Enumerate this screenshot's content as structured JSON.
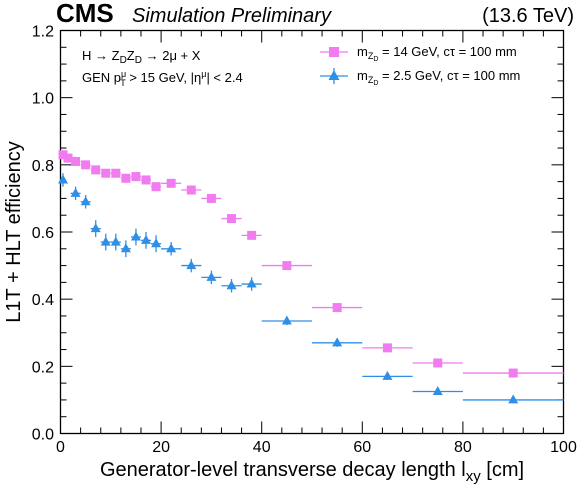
{
  "header": {
    "experiment": "CMS",
    "status": "Simulation Preliminary",
    "energy": "(13.6 TeV)"
  },
  "annotation": {
    "process": "H → Z_D Z_D → 2μ + X",
    "selection": "GEN p_T^μ > 15 GeV, |η^μ| < 2.4"
  },
  "chart_data": {
    "type": "scatter",
    "xlabel": "Generator-level transverse decay length l_xy [cm]",
    "ylabel": "L1T + HLT efficiency",
    "xlim": [
      0,
      100
    ],
    "ylim": [
      0,
      1.2
    ],
    "xticks": [
      0,
      20,
      40,
      60,
      80,
      100
    ],
    "yticks": [
      0,
      0.2,
      0.4,
      0.6,
      0.8,
      1.0,
      1.2
    ],
    "legend_position": "top-right",
    "grid": false,
    "series": [
      {
        "name": "m_ZD = 14 GeV, cτ = 100 mm",
        "color": "#f07cf0",
        "marker": "square",
        "points": [
          {
            "x": 0.5,
            "xlo": 0,
            "xhi": 1,
            "y": 0.83
          },
          {
            "x": 1.5,
            "xlo": 1,
            "xhi": 2,
            "y": 0.82
          },
          {
            "x": 3,
            "xlo": 2,
            "xhi": 4,
            "y": 0.81
          },
          {
            "x": 5,
            "xlo": 4,
            "xhi": 6,
            "y": 0.8
          },
          {
            "x": 7,
            "xlo": 6,
            "xhi": 8,
            "y": 0.785
          },
          {
            "x": 9,
            "xlo": 8,
            "xhi": 10,
            "y": 0.775
          },
          {
            "x": 11,
            "xlo": 10,
            "xhi": 12,
            "y": 0.775
          },
          {
            "x": 13,
            "xlo": 12,
            "xhi": 14,
            "y": 0.76
          },
          {
            "x": 15,
            "xlo": 14,
            "xhi": 16,
            "y": 0.765
          },
          {
            "x": 17,
            "xlo": 16,
            "xhi": 18,
            "y": 0.755
          },
          {
            "x": 19,
            "xlo": 18,
            "xhi": 20,
            "y": 0.735
          },
          {
            "x": 22,
            "xlo": 20,
            "xhi": 24,
            "y": 0.745
          },
          {
            "x": 26,
            "xlo": 24,
            "xhi": 28,
            "y": 0.725
          },
          {
            "x": 30,
            "xlo": 28,
            "xhi": 32,
            "y": 0.7
          },
          {
            "x": 34,
            "xlo": 32,
            "xhi": 36,
            "y": 0.64
          },
          {
            "x": 38,
            "xlo": 36,
            "xhi": 40,
            "y": 0.59
          },
          {
            "x": 45,
            "xlo": 40,
            "xhi": 50,
            "y": 0.5
          },
          {
            "x": 55,
            "xlo": 50,
            "xhi": 60,
            "y": 0.375
          },
          {
            "x": 65,
            "xlo": 60,
            "xhi": 70,
            "y": 0.255
          },
          {
            "x": 75,
            "xlo": 70,
            "xhi": 80,
            "y": 0.21
          },
          {
            "x": 90,
            "xlo": 80,
            "xhi": 100,
            "y": 0.18
          }
        ]
      },
      {
        "name": "m_ZD = 2.5 GeV, cτ = 100 mm",
        "color": "#2f8fe6",
        "marker": "triangle",
        "points": [
          {
            "x": 0.5,
            "xlo": 0,
            "xhi": 1,
            "y": 0.755,
            "yerr": 0.02
          },
          {
            "x": 3,
            "xlo": 2,
            "xhi": 4,
            "y": 0.715,
            "yerr": 0.02
          },
          {
            "x": 5,
            "xlo": 4,
            "xhi": 6,
            "y": 0.69,
            "yerr": 0.02
          },
          {
            "x": 7,
            "xlo": 6,
            "xhi": 8,
            "y": 0.61,
            "yerr": 0.025
          },
          {
            "x": 9,
            "xlo": 8,
            "xhi": 10,
            "y": 0.57,
            "yerr": 0.025
          },
          {
            "x": 11,
            "xlo": 10,
            "xhi": 12,
            "y": 0.57,
            "yerr": 0.025
          },
          {
            "x": 13,
            "xlo": 12,
            "xhi": 14,
            "y": 0.55,
            "yerr": 0.025
          },
          {
            "x": 15,
            "xlo": 14,
            "xhi": 16,
            "y": 0.585,
            "yerr": 0.025
          },
          {
            "x": 17,
            "xlo": 16,
            "xhi": 18,
            "y": 0.575,
            "yerr": 0.025
          },
          {
            "x": 19,
            "xlo": 18,
            "xhi": 20,
            "y": 0.565,
            "yerr": 0.025
          },
          {
            "x": 22,
            "xlo": 20,
            "xhi": 24,
            "y": 0.55,
            "yerr": 0.02
          },
          {
            "x": 26,
            "xlo": 24,
            "xhi": 28,
            "y": 0.5,
            "yerr": 0.02
          },
          {
            "x": 30,
            "xlo": 28,
            "xhi": 32,
            "y": 0.465,
            "yerr": 0.02
          },
          {
            "x": 34,
            "xlo": 32,
            "xhi": 36,
            "y": 0.44,
            "yerr": 0.02
          },
          {
            "x": 38,
            "xlo": 36,
            "xhi": 40,
            "y": 0.445,
            "yerr": 0.02
          },
          {
            "x": 45,
            "xlo": 40,
            "xhi": 50,
            "y": 0.335,
            "yerr": 0.012
          },
          {
            "x": 55,
            "xlo": 50,
            "xhi": 60,
            "y": 0.27,
            "yerr": 0.012
          },
          {
            "x": 65,
            "xlo": 60,
            "xhi": 70,
            "y": 0.17,
            "yerr": 0.01
          },
          {
            "x": 75,
            "xlo": 70,
            "xhi": 80,
            "y": 0.125,
            "yerr": 0.01
          },
          {
            "x": 90,
            "xlo": 80,
            "xhi": 100,
            "y": 0.1,
            "yerr": 0.008
          }
        ]
      }
    ]
  }
}
